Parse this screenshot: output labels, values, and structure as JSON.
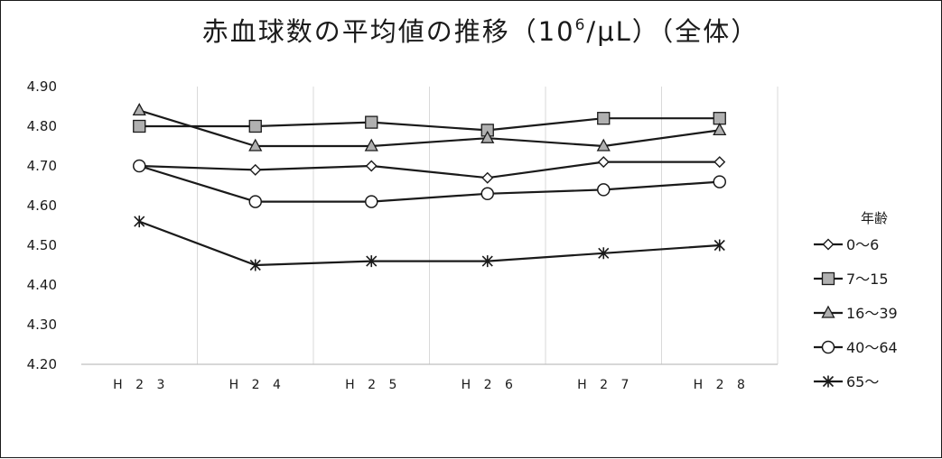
{
  "chart_data": {
    "type": "line",
    "title": "赤血球数の平均値の推移（10",
    "title_superscript": "6",
    "title_suffix": "/μL）（全体）",
    "categories": [
      "H23",
      "H24",
      "H25",
      "H26",
      "H27",
      "H28"
    ],
    "category_tick_labels": [
      "H 2 3",
      "H 2 4",
      "H 2 5",
      "H 2 6",
      "H 2 7",
      "H 2 8"
    ],
    "ylim": [
      4.2,
      4.9
    ],
    "yticks": [
      4.9,
      4.8,
      4.7,
      4.6,
      4.5,
      4.4,
      4.3,
      4.2
    ],
    "ytick_labels": [
      "4.90",
      "4.80",
      "4.70",
      "4.60",
      "4.50",
      "4.40",
      "4.30",
      "4.20"
    ],
    "grid": "vertical",
    "legend_title": "年齢",
    "legend_position": "right",
    "series": [
      {
        "name": "0～6",
        "marker": "diamond-hollow",
        "values": [
          4.7,
          4.69,
          4.7,
          4.67,
          4.71,
          4.71
        ]
      },
      {
        "name": "7～15",
        "marker": "square-gray",
        "values": [
          4.8,
          4.8,
          4.81,
          4.79,
          4.82,
          4.82
        ]
      },
      {
        "name": "16～39",
        "marker": "triangle-gray",
        "values": [
          4.84,
          4.75,
          4.75,
          4.77,
          4.75,
          4.79
        ]
      },
      {
        "name": "40～64",
        "marker": "circle-hollow",
        "values": [
          4.7,
          4.61,
          4.61,
          4.63,
          4.64,
          4.66
        ]
      },
      {
        "name": "65～",
        "marker": "asterisk",
        "values": [
          4.56,
          4.45,
          4.46,
          4.46,
          4.48,
          4.5
        ]
      }
    ],
    "colors": {
      "line": "#1a1a1a",
      "marker_fill_gray": "#b0b0b0",
      "grid": "#d9d9d9",
      "axis": "#bfbfbf"
    }
  }
}
